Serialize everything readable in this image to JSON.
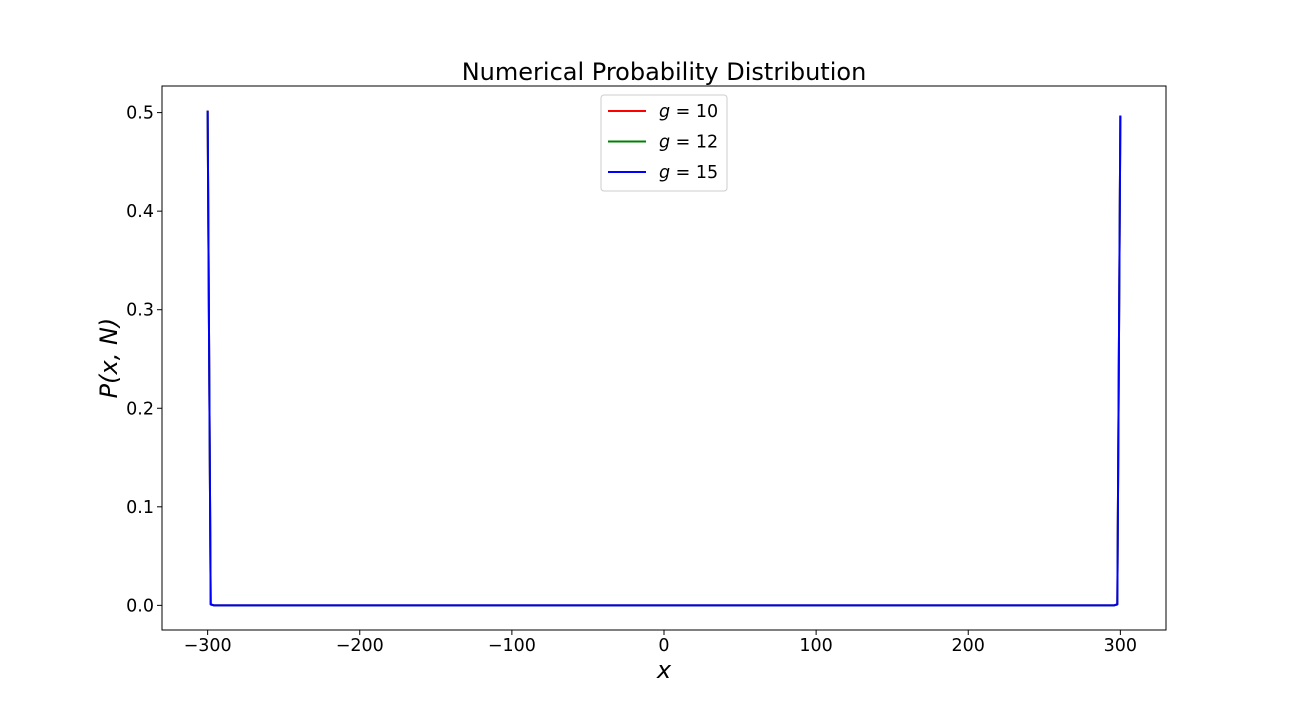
{
  "chart_data": {
    "type": "line",
    "title": "Numerical Probability Distribution",
    "xlabel": "x",
    "ylabel": "P(x, N)",
    "xlim": [
      -330,
      330
    ],
    "ylim": [
      -0.025,
      0.527
    ],
    "xticks": [
      -300,
      -200,
      -100,
      0,
      100,
      200,
      300
    ],
    "xtick_labels": [
      "−300",
      "−200",
      "−100",
      "0",
      "100",
      "200",
      "300"
    ],
    "yticks": [
      0.0,
      0.1,
      0.2,
      0.3,
      0.4,
      0.5
    ],
    "ytick_labels": [
      "0.0",
      "0.1",
      "0.2",
      "0.3",
      "0.4",
      "0.5"
    ],
    "grid": false,
    "legend_position": "upper-center",
    "series": [
      {
        "name": "g = 10",
        "legend_var": "g",
        "legend_rest": " = 10",
        "color": "#ff0000",
        "x": [
          -300,
          -298,
          -296,
          296,
          298,
          300
        ],
        "y": [
          0.502,
          0.001,
          0.0,
          0.0,
          0.001,
          0.497
        ]
      },
      {
        "name": "g = 12",
        "legend_var": "g",
        "legend_rest": " = 12",
        "color": "#008000",
        "x": [
          -300,
          -298,
          -296,
          296,
          298,
          300
        ],
        "y": [
          0.502,
          0.001,
          0.0,
          0.0,
          0.001,
          0.497
        ]
      },
      {
        "name": "g = 15",
        "legend_var": "g",
        "legend_rest": " = 15",
        "color": "#0000ff",
        "x": [
          -300,
          -298,
          -296,
          296,
          298,
          300
        ],
        "y": [
          0.502,
          0.001,
          0.0,
          0.0,
          0.001,
          0.497
        ]
      }
    ]
  }
}
